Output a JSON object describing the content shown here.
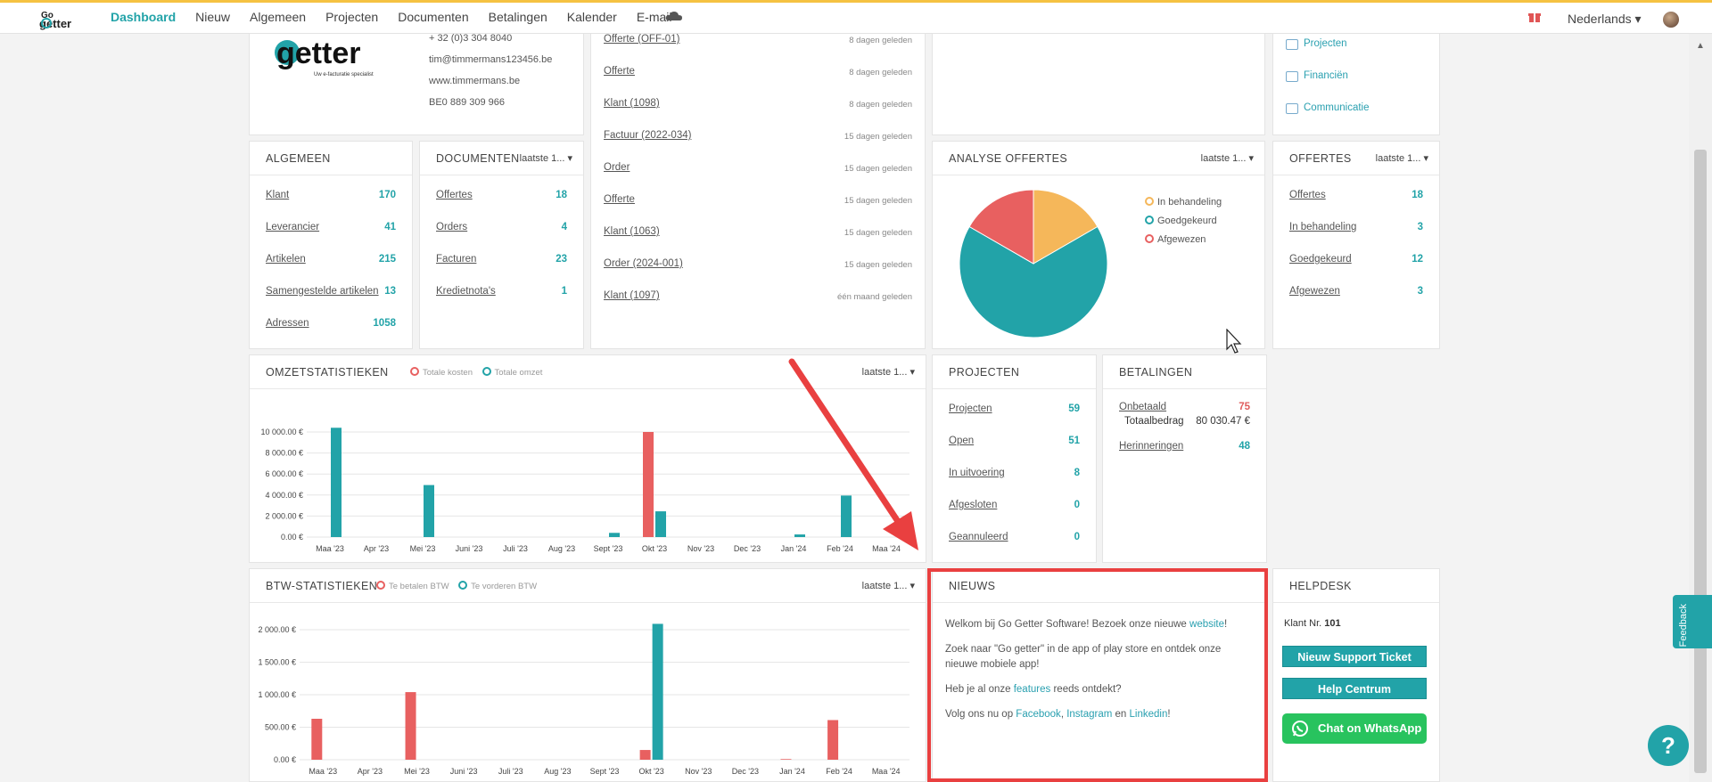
{
  "nav": {
    "items": [
      "Dashboard",
      "Nieuw",
      "Algemeen",
      "Projecten",
      "Documenten",
      "Betalingen",
      "Kalender",
      "E-mail"
    ],
    "language": "Nederlands",
    "logo_text": "Go getter"
  },
  "company": {
    "logo_text": "Go getter",
    "logo_tagline": "Uw e-facturatie specialist",
    "phone": "+ 32 (0)3 304 8040",
    "email": "tim@timmermans123456.be",
    "website": "www.timmermans.be",
    "vat": "BE0 889 309 966"
  },
  "activity": [
    {
      "label": "Offerte (OFF-01)",
      "time": "8 dagen geleden"
    },
    {
      "label": "Offerte",
      "time": "8 dagen geleden"
    },
    {
      "label": "Klant (1098)",
      "time": "8 dagen geleden"
    },
    {
      "label": "Factuur (2022-034)",
      "time": "15 dagen geleden"
    },
    {
      "label": "Order",
      "time": "15 dagen geleden"
    },
    {
      "label": "Offerte",
      "time": "15 dagen geleden"
    },
    {
      "label": "Klant (1063)",
      "time": "15 dagen geleden"
    },
    {
      "label": "Order (2024-001)",
      "time": "15 dagen geleden"
    },
    {
      "label": "Klant (1097)",
      "time": "één maand geleden"
    }
  ],
  "quicklinks": [
    "Projecten",
    "Financiën",
    "Communicatie"
  ],
  "algemeen": {
    "title": "ALGEMEEN",
    "rows": [
      {
        "label": "Klant",
        "value": "170"
      },
      {
        "label": "Leverancier",
        "value": "41"
      },
      {
        "label": "Artikelen",
        "value": "215"
      },
      {
        "label": "Samengestelde artikelen",
        "value": "13"
      },
      {
        "label": "Adressen",
        "value": "1058"
      }
    ]
  },
  "documenten": {
    "title": "DOCUMENTEN",
    "period": "laatste 1...",
    "rows": [
      {
        "label": "Offertes",
        "value": "18"
      },
      {
        "label": "Orders",
        "value": "4"
      },
      {
        "label": "Facturen",
        "value": "23"
      },
      {
        "label": "Kredietnota's",
        "value": "1"
      }
    ]
  },
  "analyse": {
    "title": "ANALYSE OFFERTES",
    "period": "laatste 1...",
    "legend": [
      "In behandeling",
      "Goedgekeurd",
      "Afgewezen"
    ],
    "colors": [
      "#f5b75a",
      "#22a3a8",
      "#e86060"
    ]
  },
  "offertes": {
    "title": "OFFERTES",
    "period": "laatste 1...",
    "rows": [
      {
        "label": "Offertes",
        "value": "18"
      },
      {
        "label": "In behandeling",
        "value": "3"
      },
      {
        "label": "Goedgekeurd",
        "value": "12"
      },
      {
        "label": "Afgewezen",
        "value": "3"
      }
    ]
  },
  "omzet": {
    "title": "OMZETSTATISTIEKEN",
    "period": "laatste 1...",
    "legend": [
      "Totale kosten",
      "Totale omzet"
    ]
  },
  "projecten": {
    "title": "PROJECTEN",
    "rows": [
      {
        "label": "Projecten",
        "value": "59"
      },
      {
        "label": "Open",
        "value": "51"
      },
      {
        "label": "In uitvoering",
        "value": "8"
      },
      {
        "label": "Afgesloten",
        "value": "0"
      },
      {
        "label": "Geannuleerd",
        "value": "0"
      }
    ]
  },
  "betalingen": {
    "title": "BETALINGEN",
    "unpaid_label": "Onbetaald",
    "unpaid_value": "75",
    "total_label": "Totaalbedrag",
    "total_value": "80 030.47 €",
    "reminders_label": "Herinneringen",
    "reminders_value": "48"
  },
  "btw": {
    "title": "BTW-STATISTIEKEN",
    "period": "laatste 1...",
    "legend": [
      "Te betalen BTW",
      "Te vorderen BTW"
    ]
  },
  "nieuws": {
    "title": "NIEUWS",
    "p1_text": "Welkom bij Go Getter Software! Bezoek onze nieuwe ",
    "p1_link": "website",
    "p1_end": "!",
    "p2": "Zoek naar \"Go getter\" in de app of play store en ontdek onze nieuwe mobiele app!",
    "p3_text": "Heb je al onze ",
    "p3_link": "features",
    "p3_end": " reeds ontdekt?",
    "p4_text": "Volg ons nu op ",
    "p4_link1": "Facebook",
    "p4_sep": ", ",
    "p4_link2": "Instagram",
    "p4_and": " en ",
    "p4_link3": "Linkedin",
    "p4_end": "!"
  },
  "helpdesk": {
    "title": "HELPDESK",
    "klant_label": "Klant Nr.",
    "klant_value": "101",
    "btn_ticket": "Nieuw Support Ticket",
    "btn_help": "Help Centrum",
    "btn_whatsapp": "Chat on WhatsApp"
  },
  "feedback_label": "Feedback",
  "help_glyph": "?",
  "chart_data": [
    {
      "type": "bar",
      "title": "OMZETSTATISTIEKEN",
      "categories": [
        "Maa '23",
        "Apr '23",
        "Mei '23",
        "Juni '23",
        "Juli '23",
        "Aug '23",
        "Sept '23",
        "Okt '23",
        "Nov '23",
        "Dec '23",
        "Jan '24",
        "Feb '24",
        "Maa '24"
      ],
      "series": [
        {
          "name": "Totale kosten",
          "color": "#e86060",
          "values": [
            0,
            0,
            0,
            0,
            0,
            0,
            0,
            10000,
            0,
            0,
            0,
            0,
            0
          ]
        },
        {
          "name": "Totale omzet",
          "color": "#22a3a8",
          "values": [
            10400,
            0,
            4950,
            0,
            0,
            0,
            400,
            2450,
            0,
            0,
            250,
            3950,
            0
          ]
        }
      ],
      "yticks": [
        "0.00 €",
        "2 000.00 €",
        "4 000.00 €",
        "6 000.00 €",
        "8 000.00 €",
        "10 000.00 €"
      ],
      "ylim": [
        0,
        10000
      ]
    },
    {
      "type": "bar",
      "title": "BTW-STATISTIEKEN",
      "categories": [
        "Maa '23",
        "Apr '23",
        "Mei '23",
        "Juni '23",
        "Juli '23",
        "Aug '23",
        "Sept '23",
        "Okt '23",
        "Nov '23",
        "Dec '23",
        "Jan '24",
        "Feb '24",
        "Maa '24"
      ],
      "series": [
        {
          "name": "Te betalen BTW",
          "color": "#e86060",
          "values": [
            630,
            0,
            1040,
            0,
            0,
            0,
            0,
            150,
            0,
            0,
            10,
            610,
            0
          ]
        },
        {
          "name": "Te vorderen BTW",
          "color": "#22a3a8",
          "values": [
            0,
            0,
            0,
            0,
            0,
            0,
            0,
            2090,
            0,
            0,
            0,
            0,
            0
          ]
        }
      ],
      "yticks": [
        "0.00 €",
        "500.00 €",
        "1 000.00 €",
        "1 500.00 €",
        "2 000.00 €"
      ],
      "ylim": [
        0,
        2000
      ]
    },
    {
      "type": "pie",
      "title": "ANALYSE OFFERTES",
      "categories": [
        "In behandeling",
        "Goedgekeurd",
        "Afgewezen"
      ],
      "values": [
        3,
        12,
        3
      ]
    }
  ]
}
